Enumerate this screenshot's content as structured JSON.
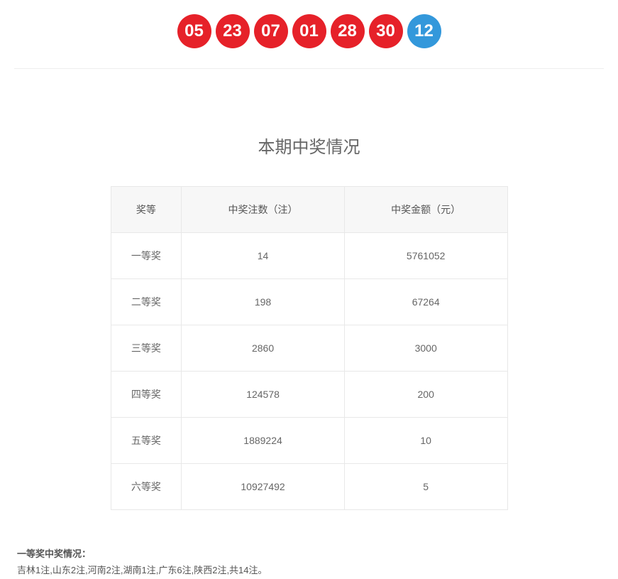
{
  "colors": {
    "red": "#e62129",
    "blue": "#3398db"
  },
  "balls": [
    {
      "value": "05",
      "type": "red"
    },
    {
      "value": "23",
      "type": "red"
    },
    {
      "value": "07",
      "type": "red"
    },
    {
      "value": "01",
      "type": "red"
    },
    {
      "value": "28",
      "type": "red"
    },
    {
      "value": "30",
      "type": "red"
    },
    {
      "value": "12",
      "type": "blue"
    }
  ],
  "section_title": "本期中奖情况",
  "table": {
    "headers": [
      "奖等",
      "中奖注数（注）",
      "中奖金额（元）"
    ],
    "rows": [
      [
        "一等奖",
        "14",
        "5761052"
      ],
      [
        "二等奖",
        "198",
        "67264"
      ],
      [
        "三等奖",
        "2860",
        "3000"
      ],
      [
        "四等奖",
        "124578",
        "200"
      ],
      [
        "五等奖",
        "1889224",
        "10"
      ],
      [
        "六等奖",
        "10927492",
        "5"
      ]
    ]
  },
  "summary": {
    "label": "一等奖中奖情况：",
    "text": "吉林1注,山东2注,河南2注,湖南1注,广东6注,陕西2注,共14注。"
  }
}
